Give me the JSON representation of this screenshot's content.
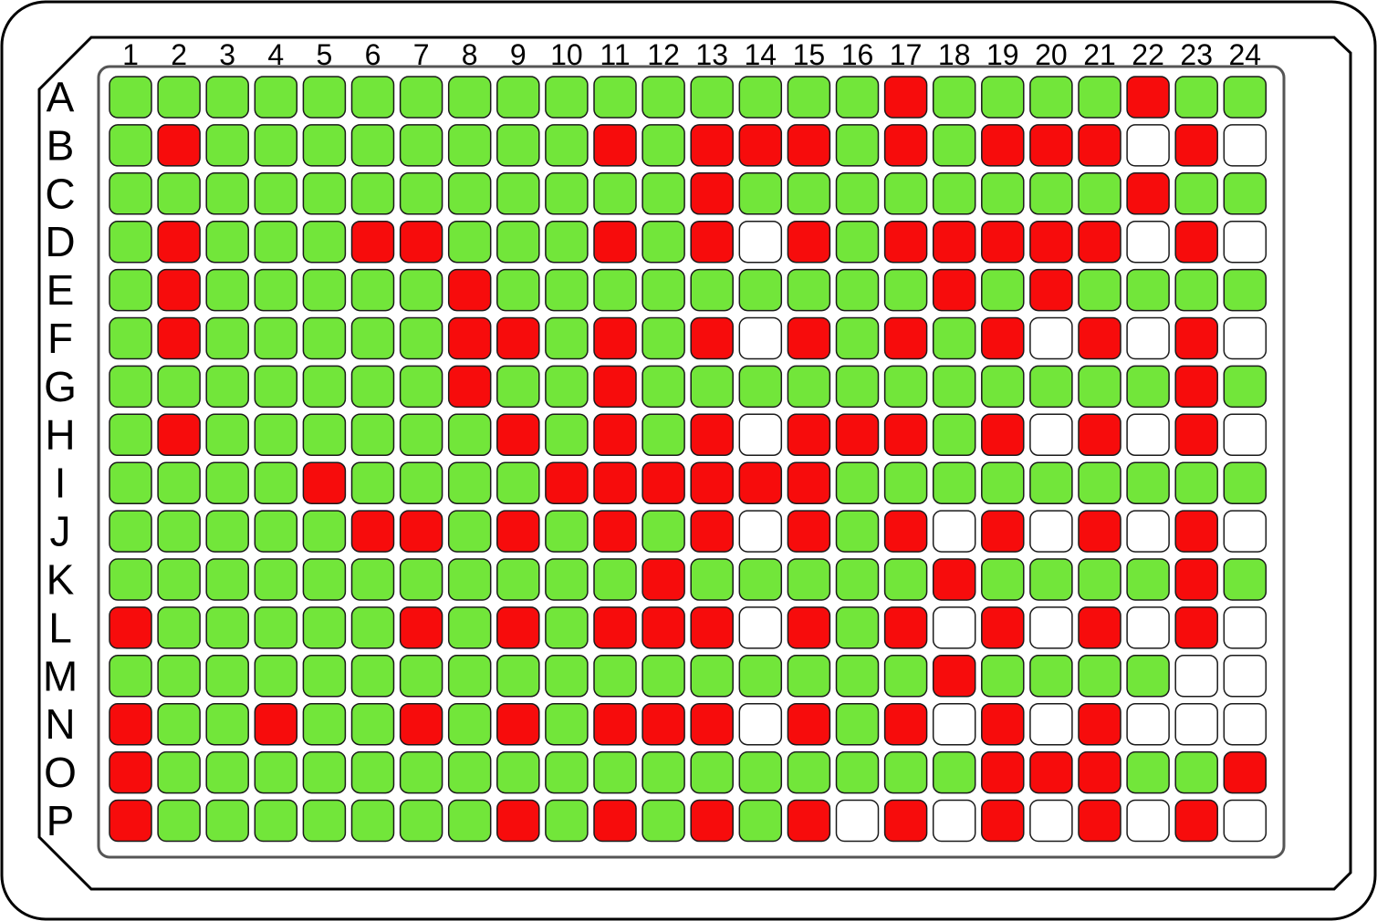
{
  "colors": {
    "G": "#72e63a",
    "R": "#f70c0c",
    "W": "#ffffff",
    "outline": "#1a1a1a"
  },
  "legend_keys": {
    "G": "green",
    "R": "red",
    "W": "white"
  },
  "columns": [
    "1",
    "2",
    "3",
    "4",
    "5",
    "6",
    "7",
    "8",
    "9",
    "10",
    "11",
    "12",
    "13",
    "14",
    "15",
    "16",
    "17",
    "18",
    "19",
    "20",
    "21",
    "22",
    "23",
    "24"
  ],
  "rows": [
    "A",
    "B",
    "C",
    "D",
    "E",
    "F",
    "G",
    "H",
    "I",
    "J",
    "K",
    "L",
    "M",
    "N",
    "O",
    "P"
  ],
  "wells": {
    "A": "GGGGGGGGGGGGGGGGRGGGGRGG",
    "B": "GRGGGGGGGGRGRRRGRGRRRWRW",
    "C": "GGGGGGGGGGGGRGGGGGGGGRGG",
    "D": "GRGGGRRGGGRGRWRGRRRRRWRW",
    "E": "GRGGGGGRGGGGGGGGGRGRGGGG",
    "F": "GRGGGGGRRGRGRWRGRGRWRWRW",
    "G": "GGGGGGGRGGRGGGGGGGGGGGRG",
    "H": "GRGGGGGGRGRGRWRRRGRWRWRW",
    "I": "GGGGRGGGGRRRRRRGGGGGGGGG",
    "J": "GGGGGRRGRGRGRWRGRWRWRWRW",
    "K": "GGGGGGGGGGGRGGGGGRGGGGRG",
    "L": "RGGGGGRGRGRRRWRGRWRWRWRW",
    "M": "GGGGGGGGGGGGGGGGGRGGGGWW",
    "N": "RGGRGGRGRGRRRWRGRWRWRWWW",
    "O": "RGGGGGGGGGGGGGGGGGRRRGGR",
    "P": "RGGGGGGGRGRGRGRWRWRWRWRW"
  }
}
